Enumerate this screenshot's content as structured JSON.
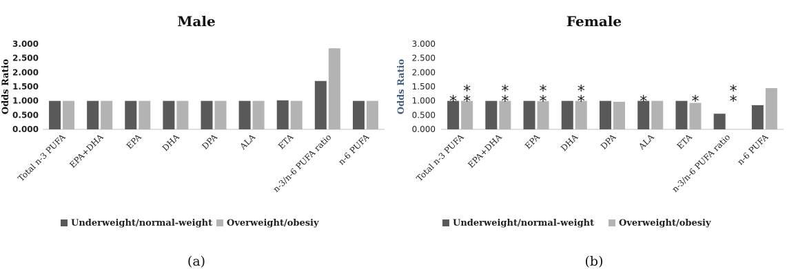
{
  "chart_data": [
    {
      "type": "bar",
      "title": "Male",
      "ylabel": "Odds Ratio",
      "sublabel": "(a)",
      "ylim": [
        0,
        3
      ],
      "yticks": [
        "0.000",
        "0.500",
        "1.000",
        "1.500",
        "2.000",
        "2.500",
        "3.000"
      ],
      "categories": [
        "Total n-3 PUFA",
        "EPA+DHA",
        "EPA",
        "DHA",
        "DPA",
        "ALA",
        "ETA",
        "n-3/n-6 PUFA ratio",
        "n-6 PUFA"
      ],
      "series": [
        {
          "name": "Underweight/normal-weight",
          "color": "#595959",
          "values": [
            1.0,
            1.0,
            1.0,
            1.0,
            1.0,
            1.0,
            1.02,
            1.7,
            1.0
          ]
        },
        {
          "name": "Overweight/obesiy",
          "color": "#b3b3b3",
          "values": [
            1.0,
            1.0,
            1.0,
            1.0,
            1.0,
            1.0,
            1.0,
            2.85,
            1.0
          ]
        }
      ],
      "stars": [],
      "grid": false,
      "legend": "bottom"
    },
    {
      "type": "bar",
      "title": "Female",
      "ylabel": "Odds Ratio",
      "sublabel": "(b)",
      "ylim": [
        0,
        3
      ],
      "yticks": [
        "0.000",
        "0.500",
        "1.000",
        "1.500",
        "2.000",
        "2.500",
        "3.000"
      ],
      "categories": [
        "Total n-3 PUFA",
        "EPA+DHA",
        "EPA",
        "DHA",
        "DPA",
        "ALA",
        "ETA",
        "n-3/n-6 PUFA ratio",
        "n-6 PUFA"
      ],
      "series": [
        {
          "name": "Underweight/normal-weight",
          "color": "#595959",
          "values": [
            1.0,
            1.0,
            1.0,
            1.0,
            1.0,
            1.0,
            1.0,
            0.55,
            0.85
          ]
        },
        {
          "name": "Overweight/obesiy",
          "color": "#b3b3b3",
          "values": [
            1.0,
            1.0,
            0.99,
            1.0,
            0.97,
            1.0,
            0.93,
            0.0,
            1.45
          ]
        }
      ],
      "stars": [
        {
          "category": 0,
          "series": 0,
          "text": "*"
        },
        {
          "category": 0,
          "series": 1,
          "text": "**"
        },
        {
          "category": 1,
          "series": 1,
          "text": "**"
        },
        {
          "category": 2,
          "series": 1,
          "text": "**"
        },
        {
          "category": 3,
          "series": 1,
          "text": "**"
        },
        {
          "category": 5,
          "series": 0,
          "text": "*"
        },
        {
          "category": 6,
          "series": 1,
          "text": "*"
        },
        {
          "category": 7,
          "series": 1,
          "text": "**"
        }
      ],
      "grid": false,
      "legend": "bottom"
    }
  ]
}
